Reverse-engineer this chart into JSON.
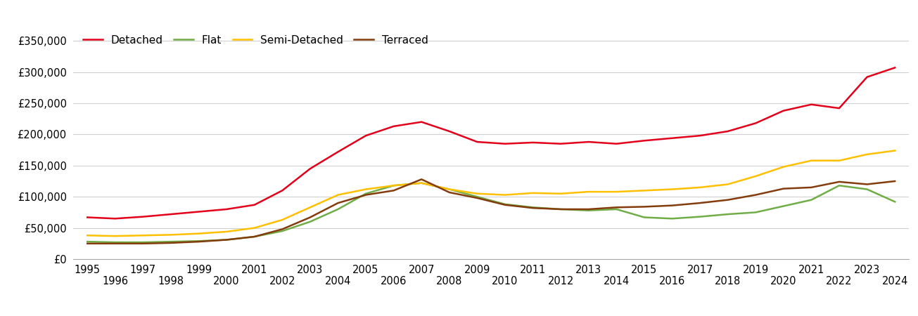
{
  "series_order": [
    "Detached",
    "Flat",
    "Semi-Detached",
    "Terraced"
  ],
  "colors": {
    "Detached": "#e2001a",
    "Flat": "#70ad47",
    "Semi-Detached": "#ffc000",
    "Terraced": "#843c0c"
  },
  "years": [
    1995,
    1996,
    1997,
    1998,
    1999,
    2000,
    2001,
    2002,
    2003,
    2004,
    2005,
    2006,
    2007,
    2008,
    2009,
    2010,
    2011,
    2012,
    2013,
    2014,
    2015,
    2016,
    2017,
    2018,
    2019,
    2020,
    2021,
    2022,
    2023,
    2024
  ],
  "values": {
    "Detached": [
      67000,
      65000,
      68000,
      72000,
      76000,
      80000,
      87000,
      110000,
      145000,
      172000,
      198000,
      213000,
      220000,
      205000,
      188000,
      185000,
      187000,
      185000,
      188000,
      185000,
      190000,
      194000,
      198000,
      205000,
      218000,
      238000,
      248000,
      242000,
      292000,
      307000
    ],
    "Flat": [
      28000,
      27000,
      27000,
      28000,
      29000,
      31000,
      36000,
      45000,
      60000,
      80000,
      105000,
      118000,
      122000,
      112000,
      100000,
      88000,
      83000,
      80000,
      78000,
      80000,
      67000,
      65000,
      68000,
      72000,
      75000,
      85000,
      95000,
      118000,
      112000,
      92000
    ],
    "Semi-Detached": [
      38000,
      37000,
      38000,
      39000,
      41000,
      44000,
      50000,
      63000,
      83000,
      103000,
      112000,
      118000,
      122000,
      112000,
      105000,
      103000,
      106000,
      105000,
      108000,
      108000,
      110000,
      112000,
      115000,
      120000,
      133000,
      148000,
      158000,
      158000,
      168000,
      174000
    ],
    "Terraced": [
      25000,
      25000,
      25000,
      26000,
      28000,
      31000,
      36000,
      48000,
      67000,
      90000,
      103000,
      110000,
      128000,
      107000,
      98000,
      87000,
      82000,
      80000,
      80000,
      83000,
      84000,
      86000,
      90000,
      95000,
      103000,
      113000,
      115000,
      124000,
      120000,
      125000
    ]
  },
  "ylim": [
    0,
    375000
  ],
  "yticks": [
    0,
    50000,
    100000,
    150000,
    200000,
    250000,
    300000,
    350000
  ],
  "background_color": "#ffffff",
  "grid_color": "#d0d0d0",
  "linewidth": 1.8,
  "legend_fontsize": 11,
  "tick_fontsize": 10.5
}
